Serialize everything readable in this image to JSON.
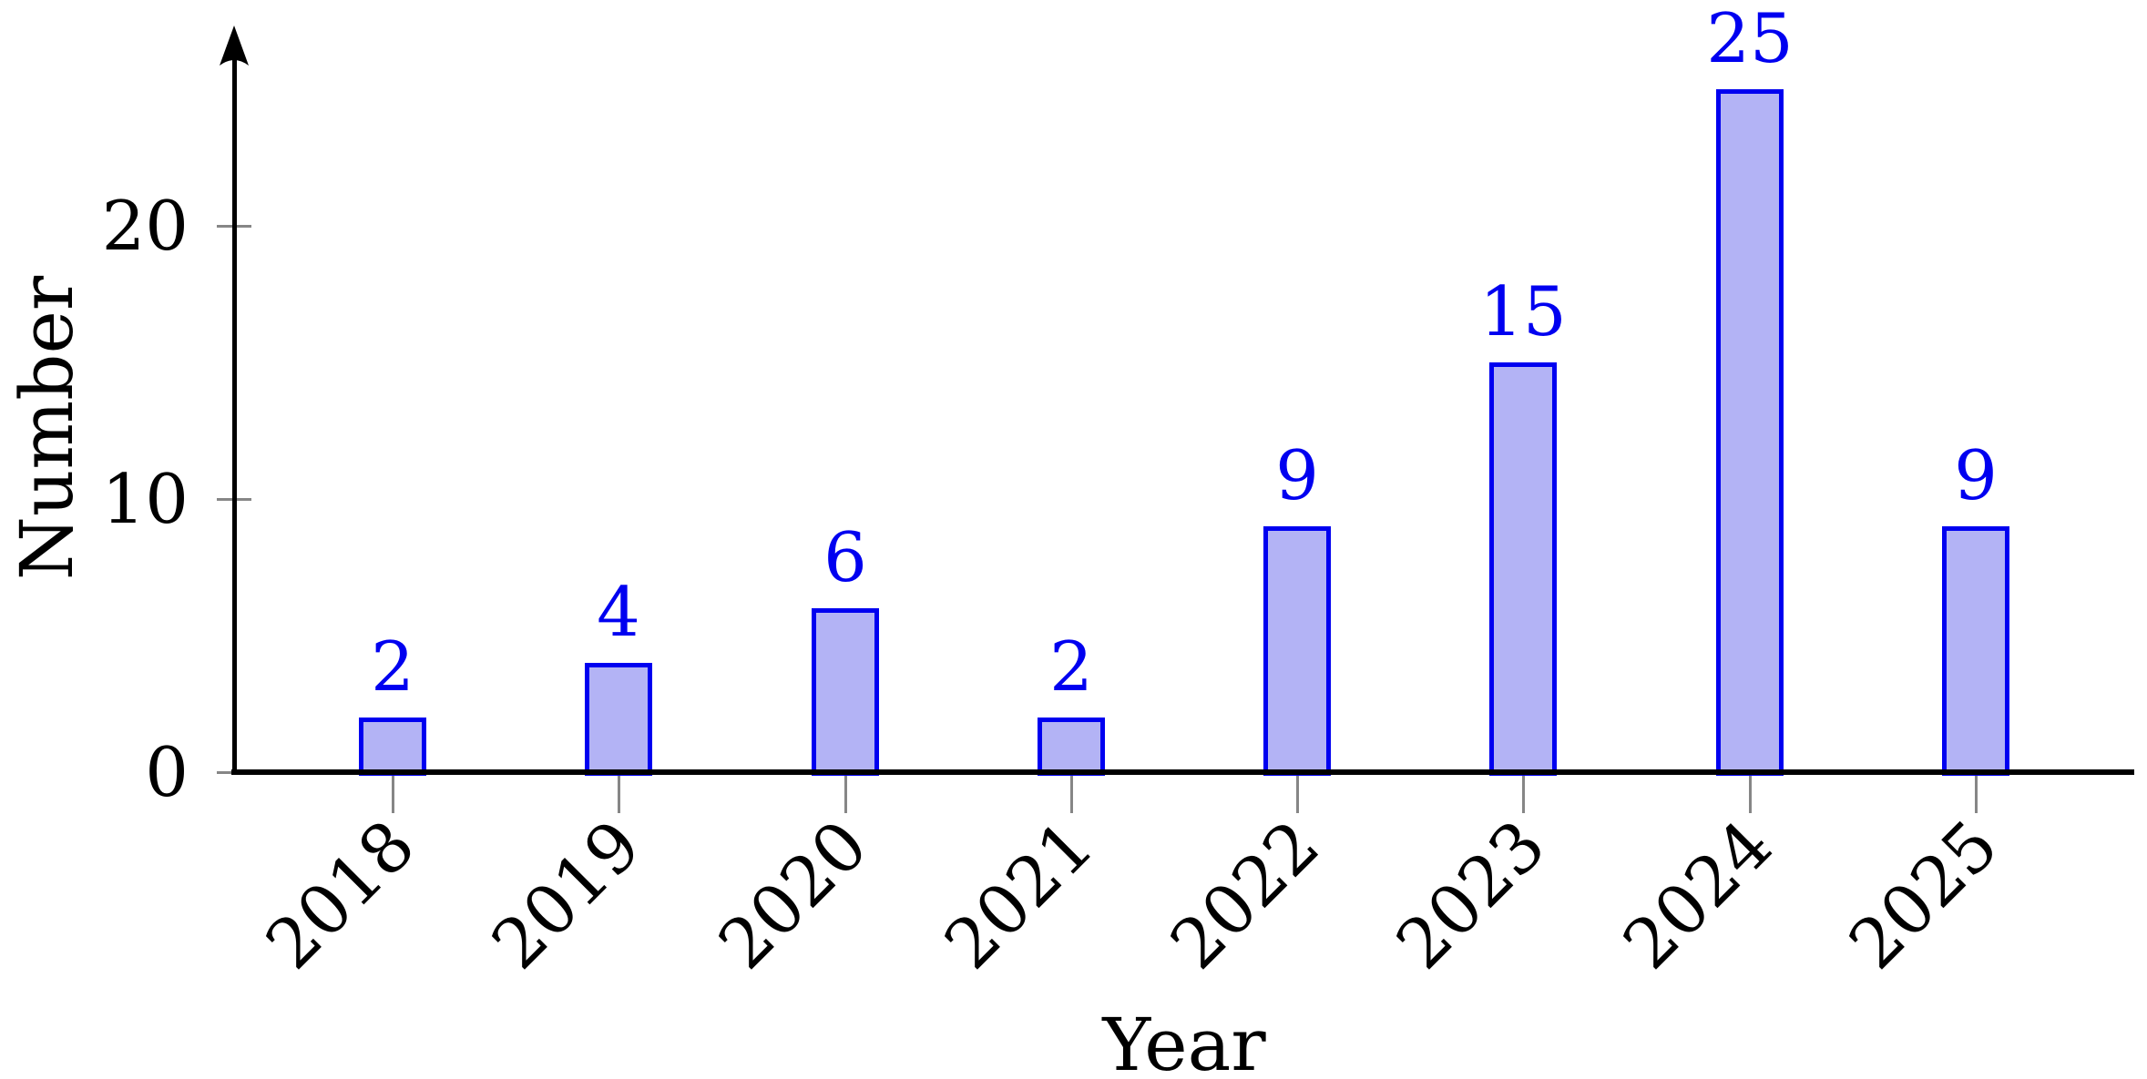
{
  "chart_data": {
    "type": "bar",
    "title": "",
    "xlabel": "Year",
    "ylabel": "Number",
    "categories": [
      "2018",
      "2019",
      "2020",
      "2021",
      "2022",
      "2023",
      "2024",
      "2025"
    ],
    "values": [
      2,
      4,
      6,
      2,
      9,
      15,
      25,
      9
    ],
    "y_ticks": [
      0,
      10,
      20
    ],
    "ylim": [
      0,
      27
    ],
    "grid": false,
    "legend_position": "none",
    "x_tick_rotation_deg": 45,
    "bar_fill_color": "#b3b3f5",
    "bar_border_color": "#0000f0",
    "value_label_color": "#0000f0",
    "axis_color": "#000000",
    "tick_mark_color": "#868686"
  }
}
